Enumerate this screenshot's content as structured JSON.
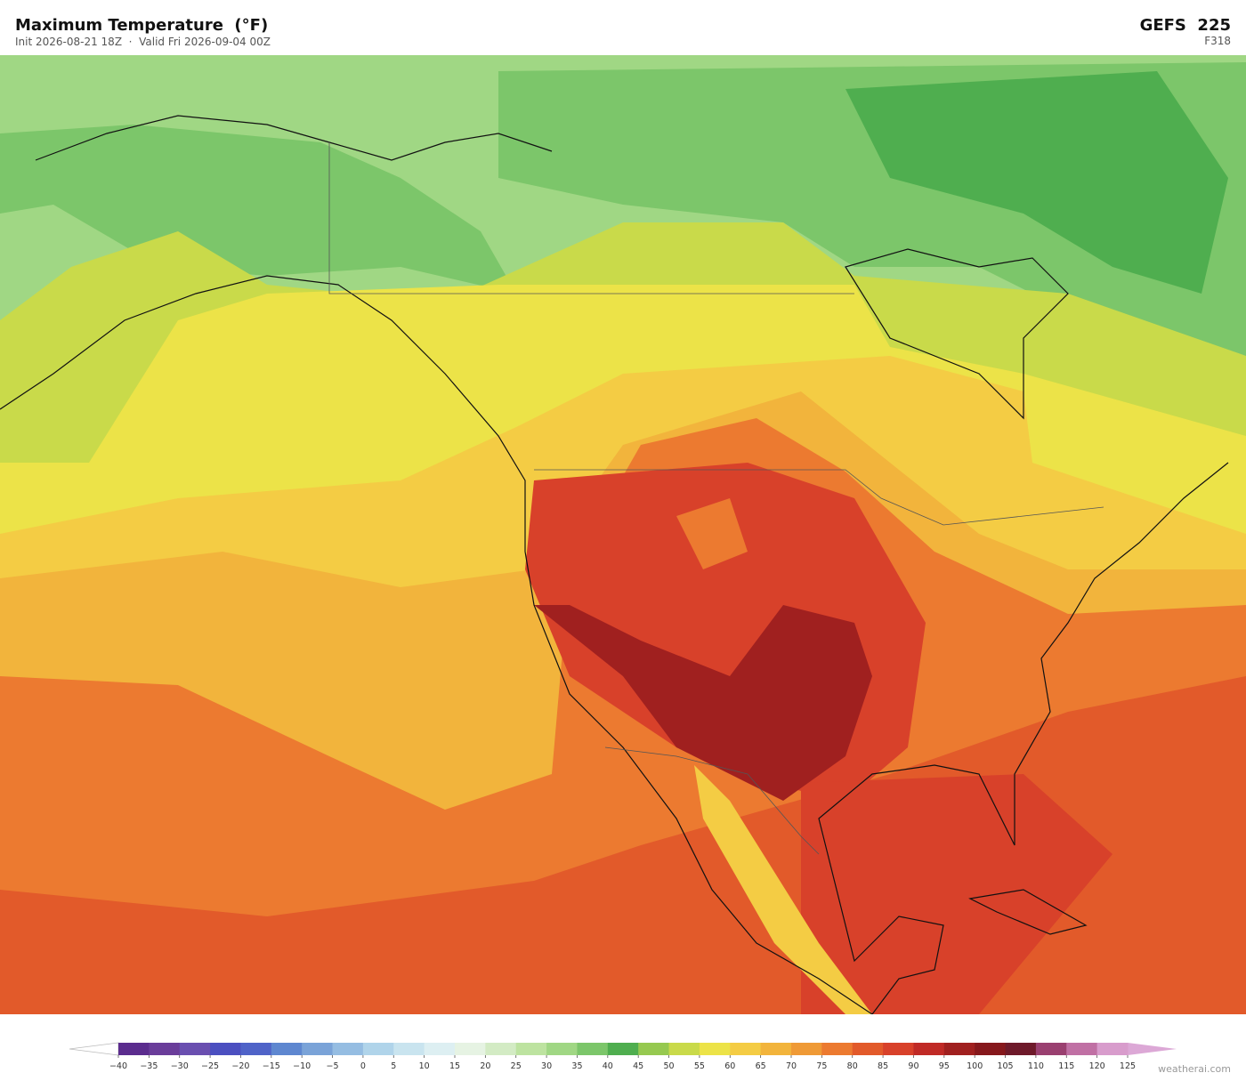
{
  "header": {
    "title": "Maximum Temperature  (°F)",
    "subtitle": "Init 2026-08-21 18Z  ·  Valid Fri 2026-09-04 00Z",
    "model": "GEFS  225",
    "forecast_hour": "F318"
  },
  "colorbar": {
    "ticks": [
      {
        "value": -40,
        "label": "−40"
      },
      {
        "value": -35,
        "label": "−35"
      },
      {
        "value": -30,
        "label": "−30"
      },
      {
        "value": -25,
        "label": "−25"
      },
      {
        "value": -20,
        "label": "−20"
      },
      {
        "value": -15,
        "label": "−15"
      },
      {
        "value": -10,
        "label": "−10"
      },
      {
        "value": -5,
        "label": "−5"
      },
      0,
      5,
      10,
      15,
      20,
      25,
      30,
      35,
      40,
      45,
      50,
      55,
      60,
      65,
      70,
      75,
      80,
      85,
      90,
      95,
      100,
      105,
      110,
      115,
      120,
      125
    ],
    "colors": [
      "#5b2c8e",
      "#6a3d9a",
      "#6a4fb0",
      "#4b4fc0",
      "#4f63c8",
      "#5e87d0",
      "#7aa3d8",
      "#95bde2",
      "#b0d4ea",
      "#c9e4ef",
      "#ddeff2",
      "#e6f3e3",
      "#d3ebc4",
      "#bde3a0",
      "#a0d784",
      "#7cc66a",
      "#4fae4f",
      "#96c950",
      "#c9da4a",
      "#ece348",
      "#f4cc44",
      "#f2b43c",
      "#ef9a36",
      "#ec7a30",
      "#e25a2a",
      "#d8412a",
      "#c02a26",
      "#a0201f",
      "#86181c",
      "#6e1a2a",
      "#9a4070",
      "#c070a4",
      "#d89ccc"
    ],
    "under_color": "#ffffff",
    "over_color": "#dca8d6"
  },
  "footer": {
    "credit": "weatherai.com"
  }
}
